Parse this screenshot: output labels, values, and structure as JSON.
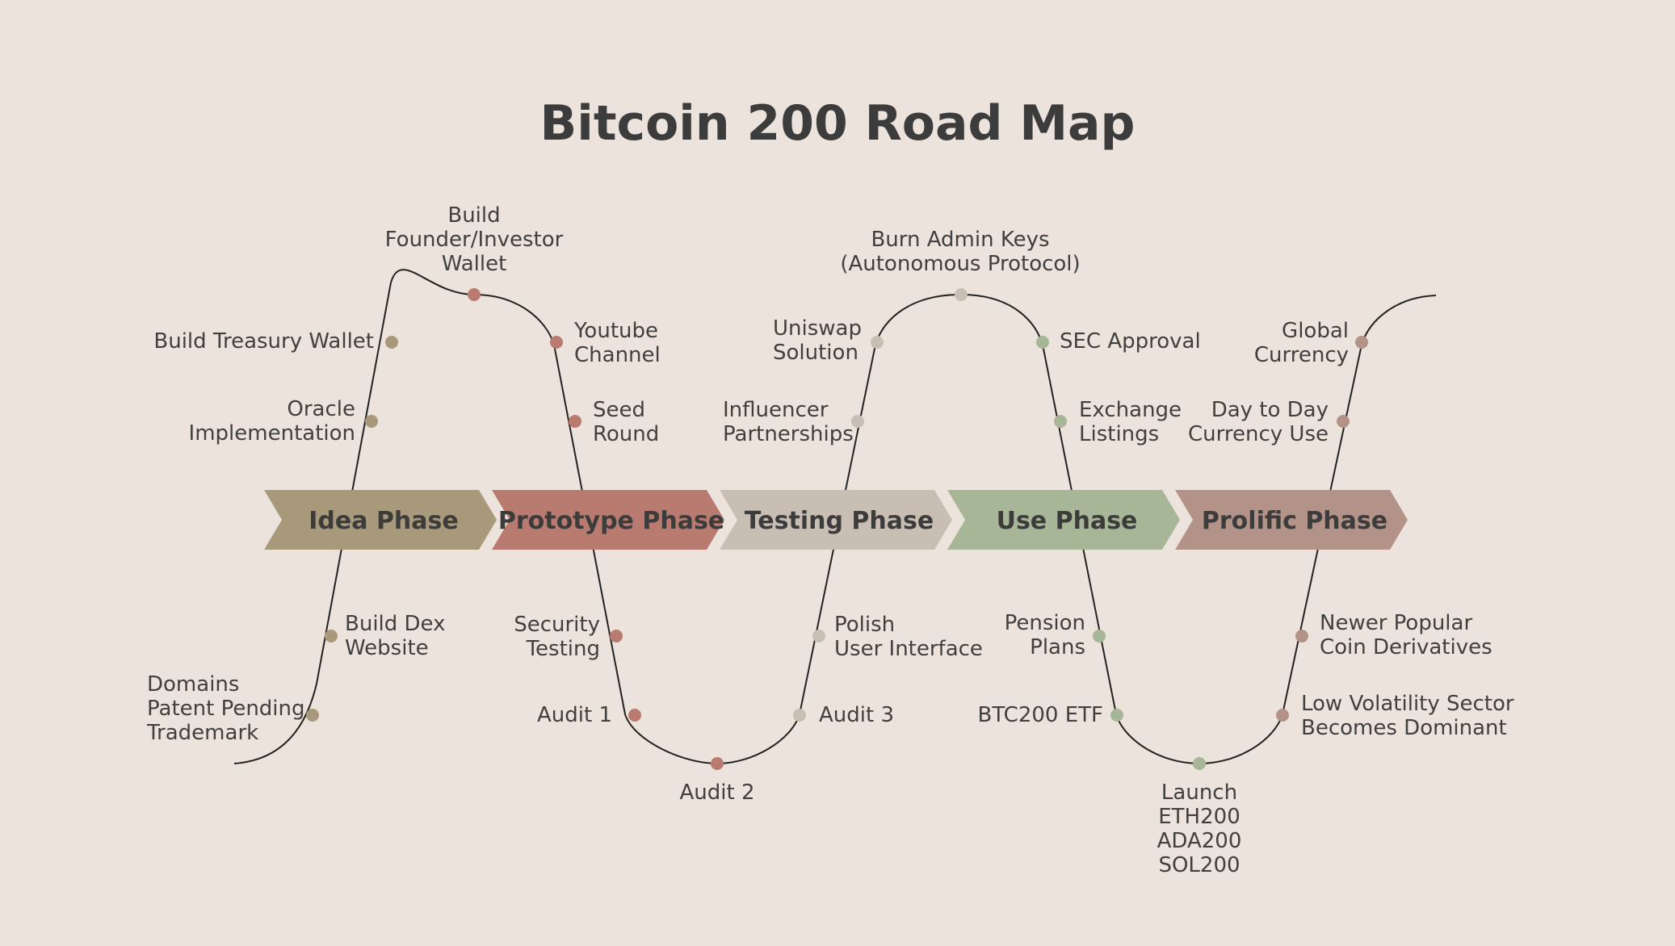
{
  "title": "Bitcoin 200 Road Map",
  "colors": {
    "background": "#ece4dc",
    "idea": "#a8997a",
    "prototype": "#b97a70",
    "testing": "#c8beb3",
    "use": "#a7b697",
    "prolific": "#b39287",
    "line": "#222222"
  },
  "phases": [
    {
      "label": "Idea Phase",
      "color_key": "idea"
    },
    {
      "label": "Prototype Phase",
      "color_key": "prototype"
    },
    {
      "label": "Testing Phase",
      "color_key": "testing"
    },
    {
      "label": "Use Phase",
      "color_key": "use"
    },
    {
      "label": "Prolific Phase",
      "color_key": "prolific"
    }
  ],
  "milestones": [
    {
      "id": "domains",
      "text": "Domains\nPatent Pending\nTrademark",
      "color_key": "idea"
    },
    {
      "id": "build-dex",
      "text": "Build Dex\nWebsite",
      "color_key": "idea"
    },
    {
      "id": "oracle",
      "text": "Oracle\nImplementation",
      "color_key": "idea"
    },
    {
      "id": "treasury",
      "text": "Build Treasury Wallet",
      "color_key": "idea"
    },
    {
      "id": "founder-wallet",
      "text": "Build\nFounder/Investor\nWallet",
      "color_key": "prototype"
    },
    {
      "id": "youtube",
      "text": "Youtube\nChannel",
      "color_key": "prototype"
    },
    {
      "id": "seed",
      "text": "Seed\nRound",
      "color_key": "prototype"
    },
    {
      "id": "security",
      "text": "Security\nTesting",
      "color_key": "prototype"
    },
    {
      "id": "audit1",
      "text": "Audit 1",
      "color_key": "prototype"
    },
    {
      "id": "audit2",
      "text": "Audit 2",
      "color_key": "prototype"
    },
    {
      "id": "audit3",
      "text": "Audit 3",
      "color_key": "testing"
    },
    {
      "id": "polish",
      "text": "Polish\nUser Interface",
      "color_key": "testing"
    },
    {
      "id": "influencer",
      "text": "Influencer\nPartnerships",
      "color_key": "testing"
    },
    {
      "id": "uniswap",
      "text": "Uniswap\nSolution",
      "color_key": "testing"
    },
    {
      "id": "burn-keys",
      "text": "Burn Admin Keys\n(Autonomous Protocol)",
      "color_key": "testing"
    },
    {
      "id": "sec",
      "text": "SEC Approval",
      "color_key": "use"
    },
    {
      "id": "exchange",
      "text": "Exchange\nListings",
      "color_key": "use"
    },
    {
      "id": "pension",
      "text": "Pension\nPlans",
      "color_key": "use"
    },
    {
      "id": "etf",
      "text": "BTC200 ETF",
      "color_key": "use"
    },
    {
      "id": "launch",
      "text": "Launch\nETH200\nADA200\nSOL200",
      "color_key": "use"
    },
    {
      "id": "low-vol",
      "text": "Low Volatility Sector\nBecomes Dominant",
      "color_key": "prolific"
    },
    {
      "id": "newer-coins",
      "text": "Newer Popular\nCoin Derivatives",
      "color_key": "prolific"
    },
    {
      "id": "day-to-day",
      "text": "Day to Day\nCurrency Use",
      "color_key": "prolific"
    },
    {
      "id": "global",
      "text": "Global\nCurrency",
      "color_key": "prolific"
    }
  ]
}
